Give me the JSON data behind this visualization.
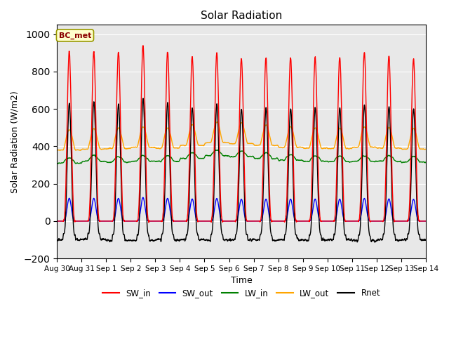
{
  "title": "Solar Radiation",
  "xlabel": "Time",
  "ylabel": "Solar Radiation (W/m2)",
  "ylim": [
    -200,
    1050
  ],
  "num_days": 15,
  "annotation_text": "BC_met",
  "annotation_box_color": "#ffffcc",
  "annotation_box_edgecolor": "#999900",
  "series": {
    "SW_in": {
      "color": "red",
      "lw": 1.0
    },
    "SW_out": {
      "color": "blue",
      "lw": 1.0
    },
    "LW_in": {
      "color": "green",
      "lw": 1.0
    },
    "LW_out": {
      "color": "orange",
      "lw": 1.0
    },
    "Rnet": {
      "color": "black",
      "lw": 1.0
    }
  },
  "background_color": "#e8e8e8",
  "tick_labels": [
    "Aug 30",
    "Aug 31",
    "Sep 1",
    "Sep 2",
    "Sep 3",
    "Sep 4",
    "Sep 5",
    "Sep 6",
    "Sep 7",
    "Sep 8",
    "Sep 9",
    "Sep 10",
    "Sep 11",
    "Sep 12",
    "Sep 13",
    "Sep 14"
  ],
  "grid_color": "white",
  "legend_ncol": 5,
  "figsize": [
    6.4,
    4.8
  ],
  "dpi": 100
}
